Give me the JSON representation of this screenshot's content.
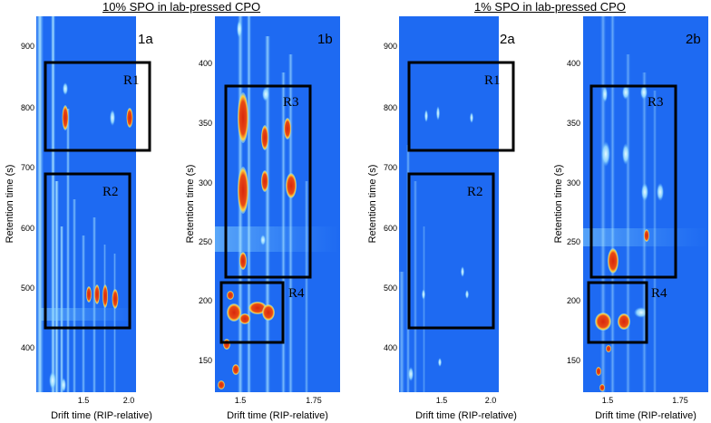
{
  "titles": {
    "left": "10% SPO in lab-pressed CPO",
    "right": "1% SPO in lab-pressed CPO"
  },
  "axis": {
    "ylabel": "Retention time (s)",
    "xlabel": "Drift time (RIP-relative)"
  },
  "panels": [
    {
      "id": "1a",
      "label": "1a",
      "yticks": [
        "900",
        "800",
        "700",
        "600",
        "500",
        "400"
      ],
      "xticks": [
        "1.5",
        "2.0"
      ],
      "regions": [
        {
          "label": "R1"
        },
        {
          "label": "R2"
        }
      ]
    },
    {
      "id": "1b",
      "label": "1b",
      "yticks": [
        "400",
        "350",
        "300",
        "250",
        "200",
        "150"
      ],
      "xticks": [
        "1.5",
        "1.75"
      ],
      "regions": [
        {
          "label": "R3"
        },
        {
          "label": "R4"
        }
      ]
    },
    {
      "id": "2a",
      "label": "2a",
      "yticks": [
        "900",
        "800",
        "700",
        "600",
        "500",
        "400"
      ],
      "xticks": [
        "1.5",
        "2.0"
      ],
      "regions": [
        {
          "label": "R1"
        },
        {
          "label": "R2"
        }
      ]
    },
    {
      "id": "2b",
      "label": "2b",
      "yticks": [
        "400",
        "350",
        "300",
        "250",
        "200",
        "150"
      ],
      "xticks": [
        "1.5",
        "1.75"
      ],
      "regions": [
        {
          "label": "R3"
        },
        {
          "label": "R4"
        }
      ]
    }
  ],
  "colors": {
    "background": "#1e6af2",
    "streak": "#a8e6ff",
    "hot": "#e23a12",
    "warm": "#ffd23c",
    "box": "#000000"
  }
}
